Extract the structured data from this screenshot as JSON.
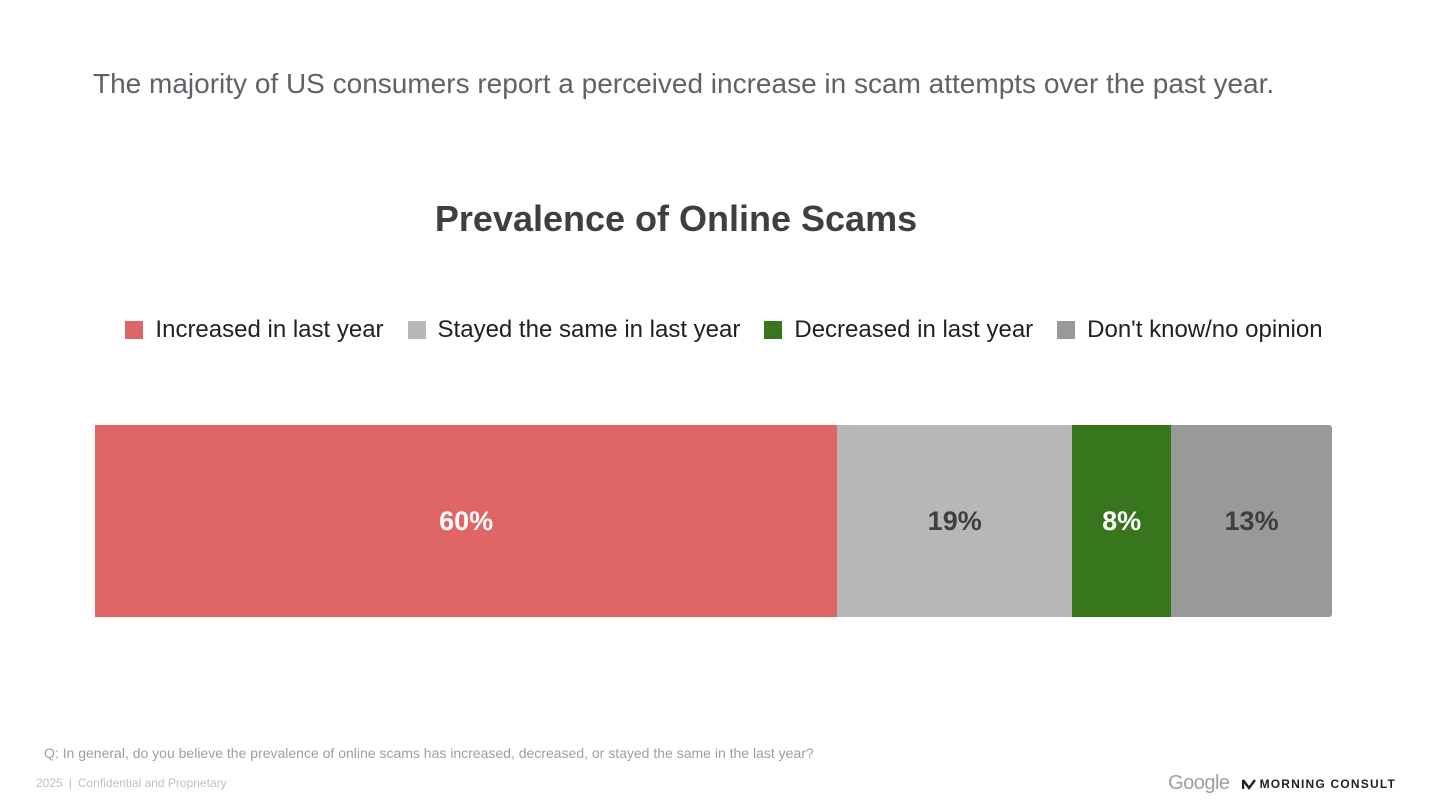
{
  "headline": "The majority of US consumers report a perceived increase in scam attempts over the past year.",
  "chart_data": {
    "type": "bar",
    "orientation": "horizontal-stacked-100",
    "title": "Prevalence of Online Scams",
    "legend_position": "top",
    "series": [
      {
        "name": "Increased in last year",
        "value": 60,
        "label": "60%",
        "color": "#e06666",
        "label_color": "#ffffff"
      },
      {
        "name": "Stayed the same in last year",
        "value": 19,
        "label": "19%",
        "color": "#b7b7b7",
        "label_color": "#3c4043"
      },
      {
        "name": "Decreased in last year",
        "value": 8,
        "label": "8%",
        "color": "#38761d",
        "label_color": "#ffffff"
      },
      {
        "name": "Don't know/no opinion",
        "value": 13,
        "label": "13%",
        "color": "#999999",
        "label_color": "#3c4043"
      }
    ],
    "xlim": [
      0,
      100
    ]
  },
  "question": "Q: In general, do you believe the prevalence of online scams has increased, decreased, or stayed the same in the last year?",
  "footer": {
    "year": "2025",
    "confidential": "Confidential and Proprietary"
  },
  "logos": {
    "google": "Google",
    "morning_consult": "MORNING CONSULT"
  }
}
